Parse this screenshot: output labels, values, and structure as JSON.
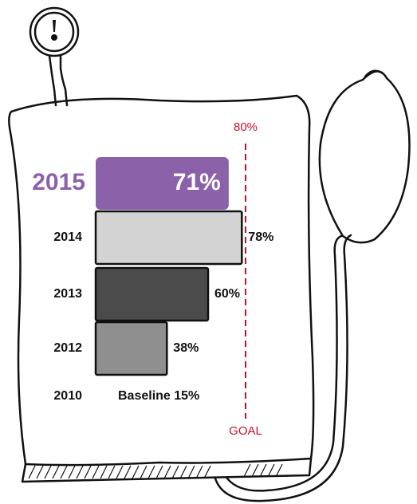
{
  "chart_data": {
    "type": "bar",
    "orientation": "horizontal",
    "categories": [
      "2015",
      "2014",
      "2013",
      "2012",
      "2010"
    ],
    "values": [
      71,
      78,
      60,
      38,
      15
    ],
    "value_labels": [
      "71%",
      "78%",
      "60%",
      "38%",
      "Baseline 15%"
    ],
    "colors": [
      "#8b62aa",
      "#d3d3d3",
      "#4b4b4b",
      "#8f8f8f",
      null
    ],
    "goal": {
      "value": 80,
      "label": "80%",
      "text": "GOAL",
      "color": "#c8102e"
    }
  }
}
